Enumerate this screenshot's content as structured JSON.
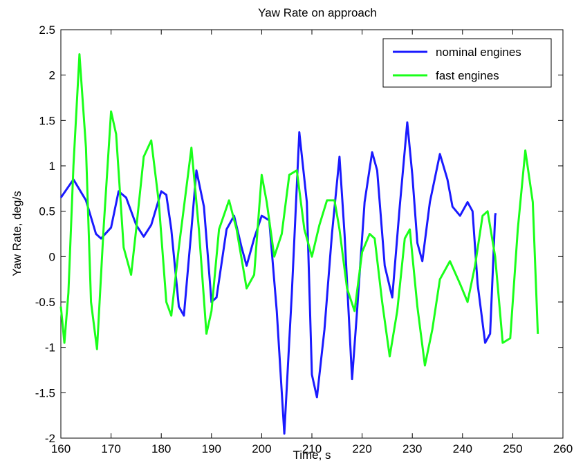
{
  "chart_data": {
    "type": "line",
    "title": "Yaw Rate on approach",
    "xlabel": "Time, s",
    "ylabel": "Yaw Rate, deg/s",
    "xlim": [
      160,
      260
    ],
    "ylim": [
      -2,
      2.5
    ],
    "xticks": [
      160,
      170,
      180,
      190,
      200,
      210,
      220,
      230,
      240,
      250,
      260
    ],
    "yticks": [
      -2,
      -1.5,
      -1,
      -0.5,
      0,
      0.5,
      1,
      1.5,
      2,
      2.5
    ],
    "ytick_labels": [
      "-2",
      "-1.5",
      "-1",
      "-0.5",
      "0",
      "0.5",
      "1",
      "1.5",
      "2",
      "2.5"
    ],
    "grid": false,
    "legend_position": "top-right",
    "series": [
      {
        "name": "nominal engines",
        "color": "#1a1aff",
        "x": [
          160,
          162.5,
          165,
          167,
          168,
          170,
          171.5,
          173,
          175,
          176.5,
          178,
          180,
          181,
          182,
          183.5,
          184.5,
          186,
          187,
          188.5,
          190,
          191,
          193,
          194.5,
          196,
          197,
          198.5,
          200,
          201.5,
          203,
          204.5,
          206,
          207.5,
          209,
          210,
          211,
          212.5,
          214,
          215.5,
          216.5,
          218,
          219,
          220.5,
          222,
          223,
          224.5,
          226,
          227.5,
          229,
          230,
          231,
          232,
          233.5,
          235.5,
          237,
          238,
          239.5,
          241,
          242,
          243,
          244.5,
          245.5,
          246.5,
          246.6
        ],
        "y": [
          0.65,
          0.85,
          0.62,
          0.25,
          0.2,
          0.32,
          0.72,
          0.65,
          0.35,
          0.22,
          0.35,
          0.72,
          0.68,
          0.3,
          -0.55,
          -0.65,
          0.3,
          0.95,
          0.55,
          -0.5,
          -0.45,
          0.3,
          0.45,
          0.1,
          -0.1,
          0.2,
          0.45,
          0.4,
          -0.6,
          -1.95,
          -0.4,
          1.37,
          0.6,
          -1.3,
          -1.55,
          -0.8,
          0.25,
          1.1,
          0.25,
          -1.35,
          -0.6,
          0.6,
          1.15,
          0.95,
          -0.1,
          -0.45,
          0.55,
          1.48,
          0.9,
          0.15,
          -0.05,
          0.6,
          1.13,
          0.85,
          0.55,
          0.45,
          0.6,
          0.5,
          -0.3,
          -0.95,
          -0.85,
          0.45,
          0.48
        ]
      },
      {
        "name": "fast engines",
        "color": "#1aff1a",
        "x": [
          160,
          160.7,
          161.5,
          162.5,
          163.7,
          165,
          166,
          167.2,
          168.5,
          170,
          171,
          172.5,
          174,
          175,
          176.5,
          178,
          179.5,
          181,
          182,
          183.5,
          186,
          187.5,
          189,
          190,
          191.5,
          193.5,
          195,
          197,
          198.5,
          200,
          201,
          202.5,
          204,
          205.5,
          207,
          208.5,
          210,
          211.5,
          213,
          214.5,
          215.5,
          217,
          218.5,
          220,
          221.5,
          222.5,
          224,
          225.5,
          227,
          228.5,
          229.5,
          231,
          232.5,
          234,
          235.5,
          237.5,
          239.5,
          241,
          242.5,
          244,
          245,
          246.5,
          248,
          249.5,
          251,
          252.5,
          254,
          255
        ],
        "y": [
          -0.55,
          -0.95,
          -0.4,
          1.0,
          2.23,
          1.2,
          -0.5,
          -1.02,
          0.3,
          1.6,
          1.35,
          0.1,
          -0.2,
          0.3,
          1.1,
          1.28,
          0.6,
          -0.5,
          -0.65,
          0.1,
          1.2,
          0.3,
          -0.85,
          -0.6,
          0.3,
          0.62,
          0.3,
          -0.35,
          -0.2,
          0.9,
          0.6,
          0.0,
          0.25,
          0.9,
          0.95,
          0.3,
          0.0,
          0.35,
          0.62,
          0.62,
          0.3,
          -0.35,
          -0.6,
          0.05,
          0.25,
          0.2,
          -0.5,
          -1.1,
          -0.6,
          0.2,
          0.3,
          -0.55,
          -1.2,
          -0.8,
          -0.25,
          -0.05,
          -0.3,
          -0.5,
          -0.1,
          0.45,
          0.5,
          0.0,
          -0.95,
          -0.9,
          0.3,
          1.17,
          0.6,
          -0.85
        ]
      }
    ]
  }
}
